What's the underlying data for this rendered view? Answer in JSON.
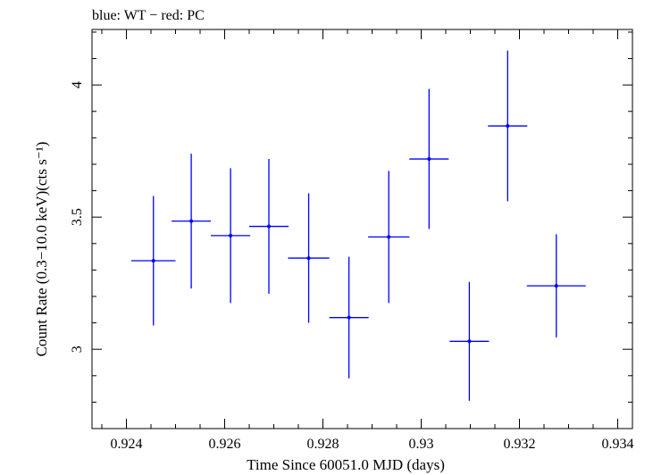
{
  "header": {
    "title": "blue: WT − red: PC"
  },
  "chart_data": {
    "type": "scatter",
    "title": "blue: WT − red: PC",
    "xlabel": "Time Since 60051.0 MJD (days)",
    "ylabel": "Count Rate (0.3−10.0 keV)(cts s⁻¹)",
    "xlim": [
      0.9233,
      0.9343
    ],
    "ylim": [
      2.7,
      4.21
    ],
    "x_ticks": [
      0.924,
      0.926,
      0.928,
      0.93,
      0.932,
      0.934
    ],
    "x_tick_labels": [
      "0.924",
      "0.926",
      "0.928",
      "0.93",
      "0.932",
      "0.934"
    ],
    "y_ticks": [
      3,
      3.5,
      4
    ],
    "y_tick_labels": [
      "3",
      "3.5",
      "4"
    ],
    "grid": false,
    "series": [
      {
        "name": "WT",
        "color": "#0000ff",
        "points": [
          {
            "x": 0.92455,
            "xerr": 0.00045,
            "y": 3.335,
            "yerr": 0.245
          },
          {
            "x": 0.92532,
            "xerr": 0.0004,
            "y": 3.485,
            "yerr": 0.255
          },
          {
            "x": 0.92612,
            "xerr": 0.0004,
            "y": 3.43,
            "yerr": 0.255
          },
          {
            "x": 0.9269,
            "xerr": 0.0004,
            "y": 3.465,
            "yerr": 0.255
          },
          {
            "x": 0.92771,
            "xerr": 0.00042,
            "y": 3.345,
            "yerr": 0.245
          },
          {
            "x": 0.92853,
            "xerr": 0.0004,
            "y": 3.12,
            "yerr": 0.23
          },
          {
            "x": 0.92934,
            "xerr": 0.00042,
            "y": 3.425,
            "yerr": 0.25
          },
          {
            "x": 0.93016,
            "xerr": 0.0004,
            "y": 3.72,
            "yerr": 0.265
          },
          {
            "x": 0.93098,
            "xerr": 0.0004,
            "y": 3.03,
            "yerr": 0.225
          },
          {
            "x": 0.93176,
            "xerr": 0.0004,
            "y": 3.845,
            "yerr": 0.285
          },
          {
            "x": 0.93275,
            "xerr": 0.0006,
            "y": 3.24,
            "yerr": 0.195
          }
        ]
      }
    ]
  }
}
